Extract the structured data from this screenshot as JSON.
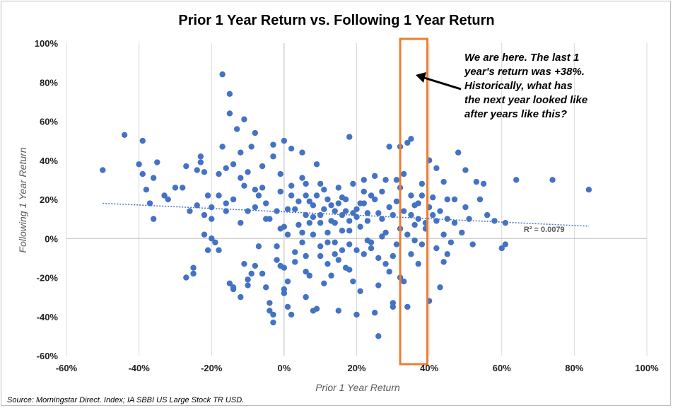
{
  "chart_data": {
    "type": "scatter",
    "title": "Prior 1 Year Return vs. Following 1 Year Return",
    "xlabel": "Prior 1 Year Return",
    "ylabel": "Following 1 Year Return",
    "xlim": [
      -60,
      100
    ],
    "ylim": [
      -60,
      100
    ],
    "x_ticks": [
      -60,
      -40,
      -20,
      0,
      20,
      40,
      60,
      80,
      100
    ],
    "y_ticks": [
      -60,
      -40,
      -20,
      0,
      20,
      40,
      60,
      80,
      100
    ],
    "x_tick_labels": [
      "-60%",
      "-40%",
      "-20%",
      "0%",
      "20%",
      "40%",
      "60%",
      "80%",
      "100%"
    ],
    "y_tick_labels": [
      "-60%",
      "-40%",
      "-20%",
      "0%",
      "20%",
      "40%",
      "60%",
      "80%",
      "100%"
    ],
    "grid": "vertical",
    "point_color": "#4472C4",
    "trendline": {
      "x": [
        -50,
        84
      ],
      "y": [
        18,
        6.3
      ],
      "label": "R² = 0.0079"
    },
    "highlight_band": {
      "x_range": [
        32,
        39.5
      ],
      "color": "#ED7D31"
    },
    "annotation": {
      "lines": [
        "We are here. The last 1",
        "year's return was +38%.",
        "Historically, what has",
        "the next year looked like",
        "after years like this?"
      ]
    },
    "points": [
      [
        -50,
        35
      ],
      [
        -44,
        53
      ],
      [
        -40,
        38
      ],
      [
        -39,
        33
      ],
      [
        -39,
        50
      ],
      [
        -38,
        25
      ],
      [
        -37,
        18
      ],
      [
        -36,
        10
      ],
      [
        -36,
        31
      ],
      [
        -35,
        39
      ],
      [
        -33,
        22
      ],
      [
        -32,
        20
      ],
      [
        -30,
        26
      ],
      [
        -28,
        26
      ],
      [
        -27,
        37
      ],
      [
        -27,
        -20
      ],
      [
        -26,
        14
      ],
      [
        -25,
        -15
      ],
      [
        -25,
        -18
      ],
      [
        -24,
        35
      ],
      [
        -24,
        17
      ],
      [
        -23,
        42
      ],
      [
        -23,
        39
      ],
      [
        -22,
        34
      ],
      [
        -22,
        2
      ],
      [
        -21,
        -6
      ],
      [
        -21,
        22
      ],
      [
        -20,
        10
      ],
      [
        -20,
        0
      ],
      [
        -19,
        -2
      ],
      [
        -18,
        -6
      ],
      [
        -18,
        33
      ],
      [
        -17,
        84
      ],
      [
        -17,
        47
      ],
      [
        -16,
        36
      ],
      [
        -16,
        14
      ],
      [
        -15,
        74
      ],
      [
        -15,
        64
      ],
      [
        -15,
        -23
      ],
      [
        -14,
        -25
      ],
      [
        -14,
        -26
      ],
      [
        -14,
        38
      ],
      [
        -13,
        56
      ],
      [
        -12,
        -30
      ],
      [
        -12,
        44
      ],
      [
        -12,
        31
      ],
      [
        -11,
        61
      ],
      [
        -11,
        27
      ],
      [
        -11,
        -13
      ],
      [
        -10,
        -21
      ],
      [
        -10,
        -24
      ],
      [
        -10,
        34
      ],
      [
        -9,
        47
      ],
      [
        -9,
        -18
      ],
      [
        -8,
        54
      ],
      [
        -8,
        25
      ],
      [
        -8,
        -14
      ],
      [
        -7,
        -4
      ],
      [
        -7,
        22
      ],
      [
        -6,
        37
      ],
      [
        -6,
        -18
      ],
      [
        -5,
        -25
      ],
      [
        -5,
        18
      ],
      [
        -5,
        10
      ],
      [
        -4,
        -33
      ],
      [
        -4,
        -37
      ],
      [
        -3,
        -39
      ],
      [
        -3,
        -43
      ],
      [
        -3,
        48
      ],
      [
        -3,
        42
      ],
      [
        -2,
        -4
      ],
      [
        -2,
        -11
      ],
      [
        -1,
        -14
      ],
      [
        -1,
        5
      ],
      [
        -1,
        24
      ],
      [
        -1,
        33
      ],
      [
        0,
        -28
      ],
      [
        0,
        -26
      ],
      [
        0,
        50
      ],
      [
        0,
        -15
      ],
      [
        1,
        -22
      ],
      [
        1,
        15
      ],
      [
        1,
        2
      ],
      [
        1,
        -35
      ],
      [
        2,
        -39
      ],
      [
        2,
        46
      ],
      [
        2,
        27
      ],
      [
        3,
        -7
      ],
      [
        3,
        -12
      ],
      [
        4,
        7
      ],
      [
        5,
        31
      ],
      [
        5,
        -2
      ],
      [
        5,
        44
      ],
      [
        6,
        -17
      ],
      [
        6,
        -30
      ],
      [
        6,
        -9
      ],
      [
        6,
        22
      ],
      [
        7,
        -19
      ],
      [
        7,
        19
      ],
      [
        8,
        -37
      ],
      [
        8,
        11
      ],
      [
        8,
        2
      ],
      [
        9,
        -36
      ],
      [
        9,
        38
      ],
      [
        10,
        -9
      ],
      [
        10,
        28
      ],
      [
        10,
        12
      ],
      [
        11,
        -23
      ],
      [
        11,
        25
      ],
      [
        12,
        3
      ],
      [
        12,
        -13
      ],
      [
        13,
        -19
      ],
      [
        13,
        17
      ],
      [
        14,
        -2
      ],
      [
        14,
        8
      ],
      [
        15,
        -11
      ],
      [
        15,
        26
      ],
      [
        15,
        -37
      ],
      [
        16,
        21
      ],
      [
        16,
        -6
      ],
      [
        17,
        -15
      ],
      [
        17,
        14
      ],
      [
        18,
        -16
      ],
      [
        18,
        4
      ],
      [
        18,
        52
      ],
      [
        19,
        -22
      ],
      [
        19,
        28
      ],
      [
        20,
        -39
      ],
      [
        20,
        11
      ],
      [
        21,
        18
      ],
      [
        21,
        -27
      ],
      [
        22,
        -8
      ],
      [
        22,
        30
      ],
      [
        23,
        9
      ],
      [
        23,
        -1
      ],
      [
        24,
        22
      ],
      [
        24,
        -5
      ],
      [
        25,
        -38
      ],
      [
        25,
        32
      ],
      [
        26,
        -50
      ],
      [
        26,
        13
      ],
      [
        26,
        -24
      ],
      [
        27,
        24
      ],
      [
        27,
        1
      ],
      [
        28,
        -13
      ],
      [
        28,
        30
      ],
      [
        29,
        -17
      ],
      [
        29,
        47
      ],
      [
        30,
        -35
      ],
      [
        30,
        12
      ],
      [
        30,
        -33
      ],
      [
        31,
        -3
      ],
      [
        31,
        30
      ],
      [
        32,
        47
      ],
      [
        32,
        -20
      ],
      [
        32,
        5
      ],
      [
        33,
        -22
      ],
      [
        33,
        33
      ],
      [
        34,
        -35
      ],
      [
        34,
        49
      ],
      [
        35,
        51
      ],
      [
        35,
        22
      ],
      [
        35,
        -8
      ],
      [
        36,
        17
      ],
      [
        36,
        -1
      ],
      [
        37,
        10
      ],
      [
        37,
        -13
      ],
      [
        38,
        28
      ],
      [
        38,
        -3
      ],
      [
        39,
        5
      ],
      [
        40,
        -32
      ],
      [
        40,
        40
      ],
      [
        41,
        21
      ],
      [
        42,
        -5
      ],
      [
        42,
        36
      ],
      [
        43,
        -25
      ],
      [
        44,
        -12
      ],
      [
        44,
        29
      ],
      [
        45,
        -8
      ],
      [
        45,
        10
      ],
      [
        46,
        -2
      ],
      [
        47,
        20
      ],
      [
        48,
        44
      ],
      [
        49,
        3
      ],
      [
        50,
        16
      ],
      [
        50,
        35
      ],
      [
        51,
        10
      ],
      [
        52,
        -3
      ],
      [
        53,
        29
      ],
      [
        54,
        20
      ],
      [
        55,
        28
      ],
      [
        56,
        12
      ],
      [
        58,
        9
      ],
      [
        60,
        -5
      ],
      [
        61,
        -3
      ],
      [
        61,
        8
      ],
      [
        64,
        30
      ],
      [
        74,
        30
      ],
      [
        84,
        25
      ],
      [
        3,
        15
      ],
      [
        6,
        12
      ],
      [
        8,
        17
      ],
      [
        10,
        8
      ],
      [
        12,
        20
      ],
      [
        14,
        14
      ],
      [
        16,
        12
      ],
      [
        18,
        9
      ],
      [
        20,
        15
      ],
      [
        22,
        18
      ],
      [
        4,
        19
      ],
      [
        7,
        8
      ],
      [
        9,
        22
      ],
      [
        11,
        15
      ],
      [
        13,
        9
      ],
      [
        15,
        18
      ],
      [
        17,
        20
      ],
      [
        19,
        13
      ],
      [
        21,
        6
      ],
      [
        23,
        13
      ],
      [
        25,
        20
      ],
      [
        27,
        10
      ],
      [
        29,
        16
      ],
      [
        31,
        19
      ],
      [
        33,
        14
      ],
      [
        35,
        12
      ],
      [
        37,
        18
      ],
      [
        39,
        8
      ],
      [
        41,
        12
      ],
      [
        43,
        14
      ],
      [
        45,
        20
      ],
      [
        47,
        8
      ],
      [
        5,
        3
      ],
      [
        12,
        -2
      ],
      [
        18,
        -3
      ],
      [
        24,
        -2
      ],
      [
        28,
        3
      ],
      [
        34,
        2
      ],
      [
        -4,
        10
      ],
      [
        -6,
        26
      ],
      [
        -8,
        16
      ],
      [
        -10,
        14
      ],
      [
        -12,
        8
      ],
      [
        -14,
        20
      ],
      [
        -16,
        18
      ],
      [
        -18,
        22
      ],
      [
        -2,
        14
      ],
      [
        2,
        22
      ],
      [
        6,
        28
      ],
      [
        10,
        -4
      ],
      [
        14,
        -8
      ],
      [
        20,
        -6
      ],
      [
        26,
        -10
      ],
      [
        30,
        -9
      ],
      [
        36,
        7
      ],
      [
        40,
        16
      ],
      [
        44,
        2
      ],
      [
        -20,
        16
      ],
      [
        -22,
        12
      ],
      [
        0,
        6
      ],
      [
        16,
        4
      ],
      [
        22,
        24
      ],
      [
        32,
        26
      ],
      [
        38,
        22
      ],
      [
        42,
        9
      ]
    ]
  },
  "source": "Source: Morningstar Direct. Index; IA SBBI US Large Stock TR USD."
}
